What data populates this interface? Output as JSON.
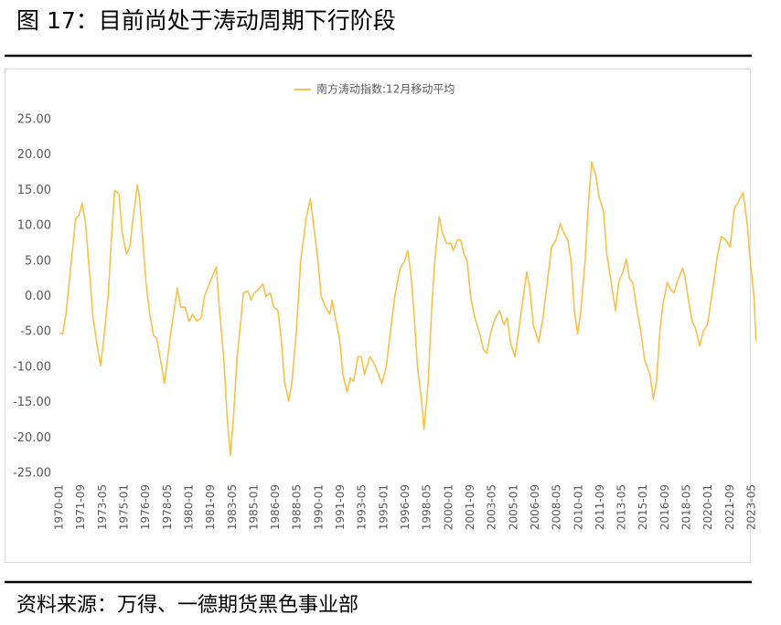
{
  "header": {
    "title": "图 17：目前尚处于涛动周期下行阶段"
  },
  "footer": {
    "source": "资料来源：万得、一德期货黑色事业部"
  },
  "chart_data": {
    "type": "line",
    "legend": "top",
    "grid": false,
    "x": [
      "1970-01",
      "1970-04",
      "1970-07",
      "1970-12",
      "1971-04",
      "1971-07",
      "1971-10",
      "1972-01",
      "1972-04",
      "1972-08",
      "1972-12",
      "1973-03",
      "1973-06",
      "1973-10",
      "1974-01",
      "1974-04",
      "1974-08",
      "1974-11",
      "1975-03",
      "1975-06",
      "1975-09",
      "1976-01",
      "1976-03",
      "1976-06",
      "1976-09",
      "1976-12",
      "1977-04",
      "1977-07",
      "1977-11",
      "1978-02",
      "1978-04",
      "1978-08",
      "1978-11",
      "1979-02",
      "1979-05",
      "1979-09",
      "1980-01",
      "1980-04",
      "1980-08",
      "1980-12",
      "1981-03",
      "1981-08",
      "1982-02",
      "1982-05",
      "1982-09",
      "1982-12",
      "1983-03",
      "1983-06",
      "1983-09",
      "1984-01",
      "1984-03",
      "1984-07",
      "1984-10",
      "1985-01",
      "1985-05",
      "1985-09",
      "1985-12",
      "1986-04",
      "1986-07",
      "1986-11",
      "1987-02",
      "1987-05",
      "1987-09",
      "1987-12",
      "1988-04",
      "1988-08",
      "1989-01",
      "1989-05",
      "1989-08",
      "1989-12",
      "1990-03",
      "1990-07",
      "1990-11",
      "1991-01",
      "1991-04",
      "1991-08",
      "1991-11",
      "1992-03",
      "1992-06",
      "1992-09",
      "1993-01",
      "1993-04",
      "1993-07",
      "1993-12",
      "1994-04",
      "1994-08",
      "1994-11",
      "1995-03",
      "1995-07",
      "1995-11",
      "1996-04",
      "1996-08",
      "1996-11",
      "1997-02",
      "1997-05",
      "1997-08",
      "1997-12",
      "1998-02",
      "1998-06",
      "1998-09",
      "1998-12",
      "1999-04",
      "1999-07",
      "1999-11",
      "2000-03",
      "2000-05",
      "2000-09",
      "2000-12",
      "2001-03",
      "2001-06",
      "2001-09",
      "2002-01",
      "2002-06",
      "2002-09",
      "2002-12",
      "2003-04",
      "2003-08",
      "2003-12",
      "2004-04",
      "2004-07",
      "2004-10",
      "2005-02",
      "2005-05",
      "2005-08",
      "2006-01",
      "2006-04",
      "2006-07",
      "2006-12",
      "2007-04",
      "2007-08",
      "2007-12",
      "2008-04",
      "2008-08",
      "2008-11",
      "2009-03",
      "2009-06",
      "2009-09",
      "2009-12",
      "2010-03",
      "2010-07",
      "2010-10",
      "2011-01",
      "2011-05",
      "2011-08",
      "2011-12",
      "2012-03",
      "2012-06",
      "2012-11",
      "2013-02",
      "2013-06",
      "2013-09",
      "2013-12",
      "2014-03",
      "2014-07",
      "2014-10",
      "2015-02",
      "2015-07",
      "2015-10",
      "2016-01",
      "2016-04",
      "2016-07",
      "2016-11",
      "2017-02",
      "2017-05",
      "2017-08",
      "2018-01",
      "2018-03",
      "2018-07",
      "2018-10",
      "2019-01",
      "2019-05",
      "2019-08",
      "2019-12",
      "2020-04",
      "2020-09",
      "2021-01",
      "2021-05",
      "2021-09",
      "2022-01",
      "2022-05",
      "2022-09",
      "2023-01",
      "2023-03",
      "2023-07",
      "2023-09"
    ],
    "series": [
      {
        "name": "南方涛动指数:12月移动平均",
        "color": "#F7C245",
        "values": [
          -5.2,
          -5.3,
          -2.5,
          5,
          11,
          11.5,
          13.2,
          10.5,
          5,
          -3,
          -7,
          -9.8,
          -6,
          0,
          8,
          15,
          14.5,
          9,
          6,
          7,
          11,
          15.8,
          14,
          8,
          2,
          -2,
          -5.5,
          -6,
          -9.5,
          -12.3,
          -10,
          -5,
          -2,
          1.2,
          -1.5,
          -1.5,
          -3.5,
          -2.5,
          -3.5,
          -3,
          0,
          2,
          4.2,
          -2,
          -9,
          -17,
          -22.5,
          -17,
          -9,
          -3,
          0.5,
          0.8,
          -0.5,
          0.5,
          1,
          1.8,
          0,
          0.5,
          -1.5,
          -2,
          -6,
          -12,
          -14.8,
          -12,
          -5,
          5,
          11,
          13.8,
          10,
          5,
          0,
          -1.5,
          -2.5,
          -0.5,
          -3,
          -6,
          -11,
          -13.5,
          -11.5,
          -12,
          -8.5,
          -8.5,
          -11,
          -8.5,
          -9.5,
          -11,
          -12.3,
          -10,
          -5,
          0,
          4,
          5,
          6.5,
          3,
          -3,
          -10,
          -15,
          -18.8,
          -12,
          -2,
          5,
          11.3,
          9,
          7.5,
          7.5,
          6.5,
          8,
          8,
          6,
          5,
          0,
          -3,
          -5.5,
          -7.5,
          -8,
          -5,
          -3,
          -2,
          -4,
          -3,
          -6.5,
          -8.5,
          -5.5,
          -2,
          3.5,
          1,
          -4,
          -6.5,
          -3,
          2,
          7,
          8,
          10.3,
          9,
          8,
          5,
          -2,
          -5.3,
          -2,
          5,
          13,
          19,
          17,
          14,
          12,
          6,
          3,
          -2,
          2,
          3.5,
          5.3,
          2.5,
          2,
          -2,
          -4.5,
          -9,
          -11,
          -14.5,
          -12,
          -5,
          -1,
          2,
          1,
          0.5,
          2,
          4,
          3,
          -1,
          -3.5,
          -4.5,
          -7,
          -5,
          -4,
          0,
          5.5,
          8.5,
          8,
          7,
          12.5,
          13.5,
          14.7,
          10,
          6,
          0,
          -6.3
        ]
      }
    ],
    "ylim": [
      -25,
      25
    ],
    "yticks": [
      {
        "value": 25,
        "label": "25.00"
      },
      {
        "value": 20,
        "label": "20.00"
      },
      {
        "value": 15,
        "label": "15.00"
      },
      {
        "value": 10,
        "label": "10.00"
      },
      {
        "value": 5,
        "label": "5.00"
      },
      {
        "value": 0,
        "label": "0.00"
      },
      {
        "value": -5,
        "label": "-5.00"
      },
      {
        "value": -10,
        "label": "-10.00"
      },
      {
        "value": -15,
        "label": "-15.00"
      },
      {
        "value": -20,
        "label": "-20.00"
      },
      {
        "value": -25,
        "label": "-25.00"
      }
    ],
    "xticks": [
      "1970-01",
      "1971-09",
      "1973-05",
      "1975-01",
      "1976-09",
      "1978-05",
      "1980-01",
      "1981-09",
      "1983-05",
      "1985-01",
      "1986-09",
      "1988-05",
      "1990-01",
      "1991-09",
      "1993-05",
      "1995-01",
      "1996-09",
      "1998-05",
      "2000-01",
      "2001-09",
      "2003-05",
      "2005-01",
      "2006-09",
      "2008-05",
      "2010-01",
      "2011-09",
      "2013-05",
      "2015-01",
      "2016-09",
      "2018-05",
      "2020-01",
      "2021-09",
      "2023-05"
    ]
  }
}
